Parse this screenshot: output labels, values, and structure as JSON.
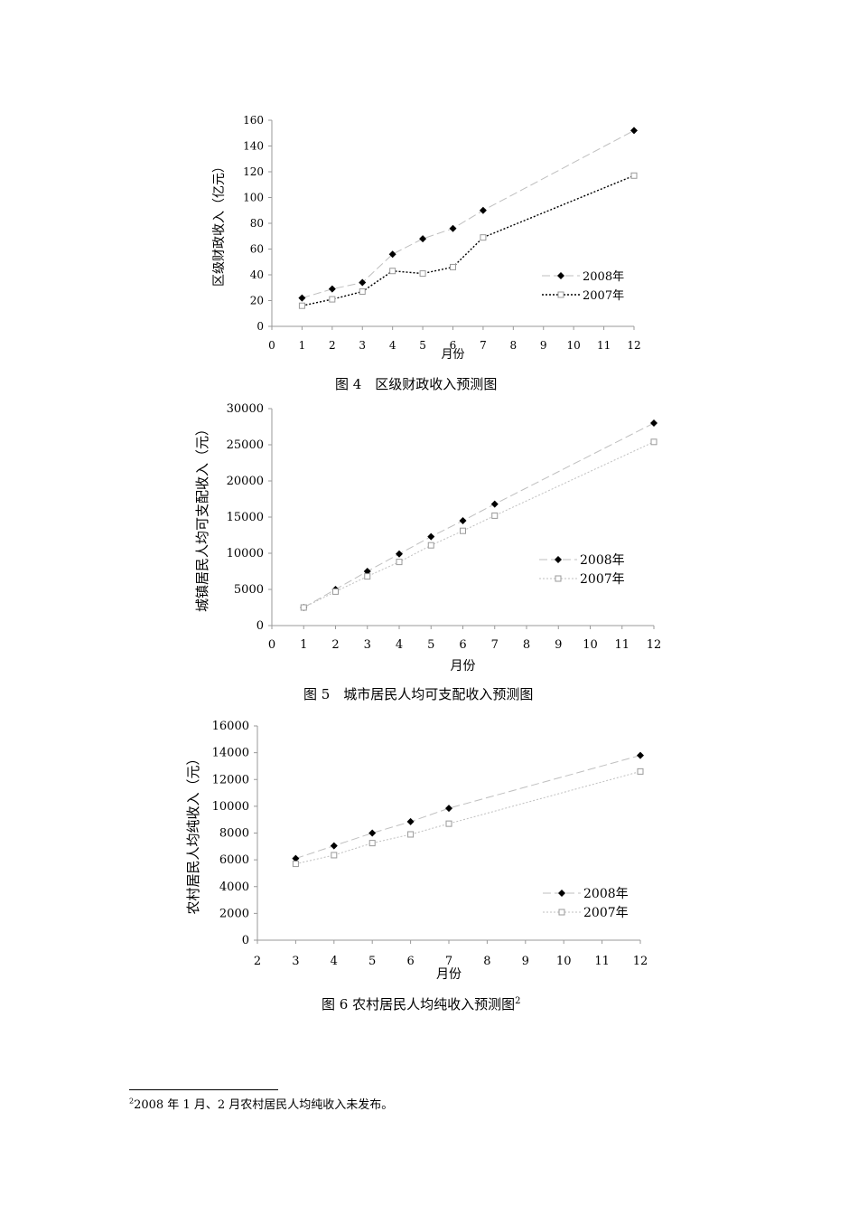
{
  "chart_data": [
    {
      "type": "line",
      "xlabel": "月份",
      "ylabel": "区级财政收入（亿元）",
      "xlim": [
        0,
        12
      ],
      "ylim": [
        0,
        160
      ],
      "x_ticks": [
        0,
        1,
        2,
        3,
        4,
        5,
        6,
        7,
        8,
        9,
        10,
        11,
        12
      ],
      "y_ticks": [
        0,
        20,
        40,
        60,
        80,
        100,
        120,
        140,
        160
      ],
      "grid": false,
      "legend_position": "bottom-right",
      "series": [
        {
          "name": "2008年",
          "marker": "diamond-filled",
          "line_style": "long-dash",
          "color": "#bfbfbf",
          "x": [
            1,
            2,
            3,
            4,
            5,
            6,
            7,
            12
          ],
          "y": [
            22,
            29,
            34,
            56,
            68,
            76,
            90,
            152
          ]
        },
        {
          "name": "2007年",
          "marker": "square-open",
          "line_style": "dotted",
          "color": "#000000",
          "x": [
            1,
            2,
            3,
            4,
            5,
            6,
            7,
            12
          ],
          "y": [
            16,
            21,
            27,
            43,
            41,
            46,
            69,
            117
          ]
        }
      ]
    },
    {
      "type": "line",
      "xlabel": "月份",
      "ylabel": "城镇居民人均可支配收入（元）",
      "xlim": [
        0,
        12
      ],
      "ylim": [
        0,
        30000
      ],
      "x_ticks": [
        0,
        1,
        2,
        3,
        4,
        5,
        6,
        7,
        8,
        9,
        10,
        11,
        12
      ],
      "y_ticks": [
        0,
        5000,
        10000,
        15000,
        20000,
        25000,
        30000
      ],
      "grid": false,
      "legend_position": "bottom-right",
      "series": [
        {
          "name": "2008年",
          "marker": "diamond-filled",
          "line_style": "long-dash",
          "color": "#bfbfbf",
          "x": [
            1,
            2,
            3,
            4,
            5,
            6,
            7,
            12
          ],
          "y": [
            2500,
            5000,
            7500,
            9900,
            12300,
            14500,
            16800,
            28000
          ]
        },
        {
          "name": "2007年",
          "marker": "square-open",
          "line_style": "dotted",
          "color": "#bfbfbf",
          "x": [
            1,
            2,
            3,
            4,
            5,
            6,
            7,
            12
          ],
          "y": [
            2500,
            4700,
            6800,
            8800,
            11100,
            13100,
            15200,
            25400
          ]
        }
      ]
    },
    {
      "type": "line",
      "xlabel": "月份",
      "ylabel": "农村居民人均纯收入（元）",
      "xlim": [
        2,
        12
      ],
      "ylim": [
        0,
        16000
      ],
      "x_ticks": [
        2,
        3,
        4,
        5,
        6,
        7,
        8,
        9,
        10,
        11,
        12
      ],
      "y_ticks": [
        0,
        2000,
        4000,
        6000,
        8000,
        10000,
        12000,
        14000,
        16000
      ],
      "grid": false,
      "legend_position": "bottom-right",
      "series": [
        {
          "name": "2008年",
          "marker": "diamond-filled",
          "line_style": "long-dash",
          "color": "#bfbfbf",
          "x": [
            3,
            4,
            5,
            6,
            7,
            12
          ],
          "y": [
            6100,
            7050,
            8000,
            8850,
            9850,
            13800
          ]
        },
        {
          "name": "2007年",
          "marker": "square-open",
          "line_style": "dotted",
          "color": "#bfbfbf",
          "x": [
            3,
            4,
            5,
            6,
            7,
            12
          ],
          "y": [
            5700,
            6350,
            7250,
            7900,
            8700,
            12600
          ]
        }
      ]
    }
  ],
  "captions": {
    "fig4": "图 4　区级财政收入预测图",
    "fig5": "图 5　城市居民人均可支配收入预测图",
    "fig6": "图 6  农村居民人均纯收入预测图",
    "fig6_sup": "2"
  },
  "footnote": {
    "mark": "2",
    "text": "2008 年 1 月、2 月农村居民人均纯收入未发布。"
  }
}
